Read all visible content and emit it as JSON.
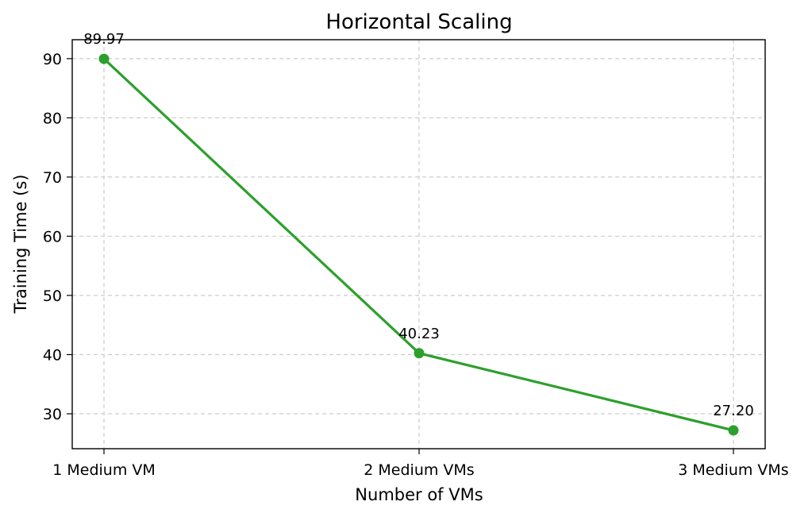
{
  "chart_data": {
    "type": "line",
    "title": "Horizontal Scaling",
    "xlabel": "Number of VMs",
    "ylabel": "Training Time (s)",
    "categories": [
      "1 Medium VM",
      "2 Medium VMs",
      "3 Medium VMs"
    ],
    "series": [
      {
        "values": [
          89.97,
          40.23,
          27.2
        ],
        "data_labels": [
          "89.97",
          "40.23",
          "27.20"
        ],
        "color": "#2ca02c",
        "marker": "circle"
      }
    ],
    "ylim": [
      24.1,
      93.2
    ],
    "yticks": [
      30,
      40,
      50,
      60,
      70,
      80,
      90
    ],
    "grid": true,
    "legend": "none"
  }
}
